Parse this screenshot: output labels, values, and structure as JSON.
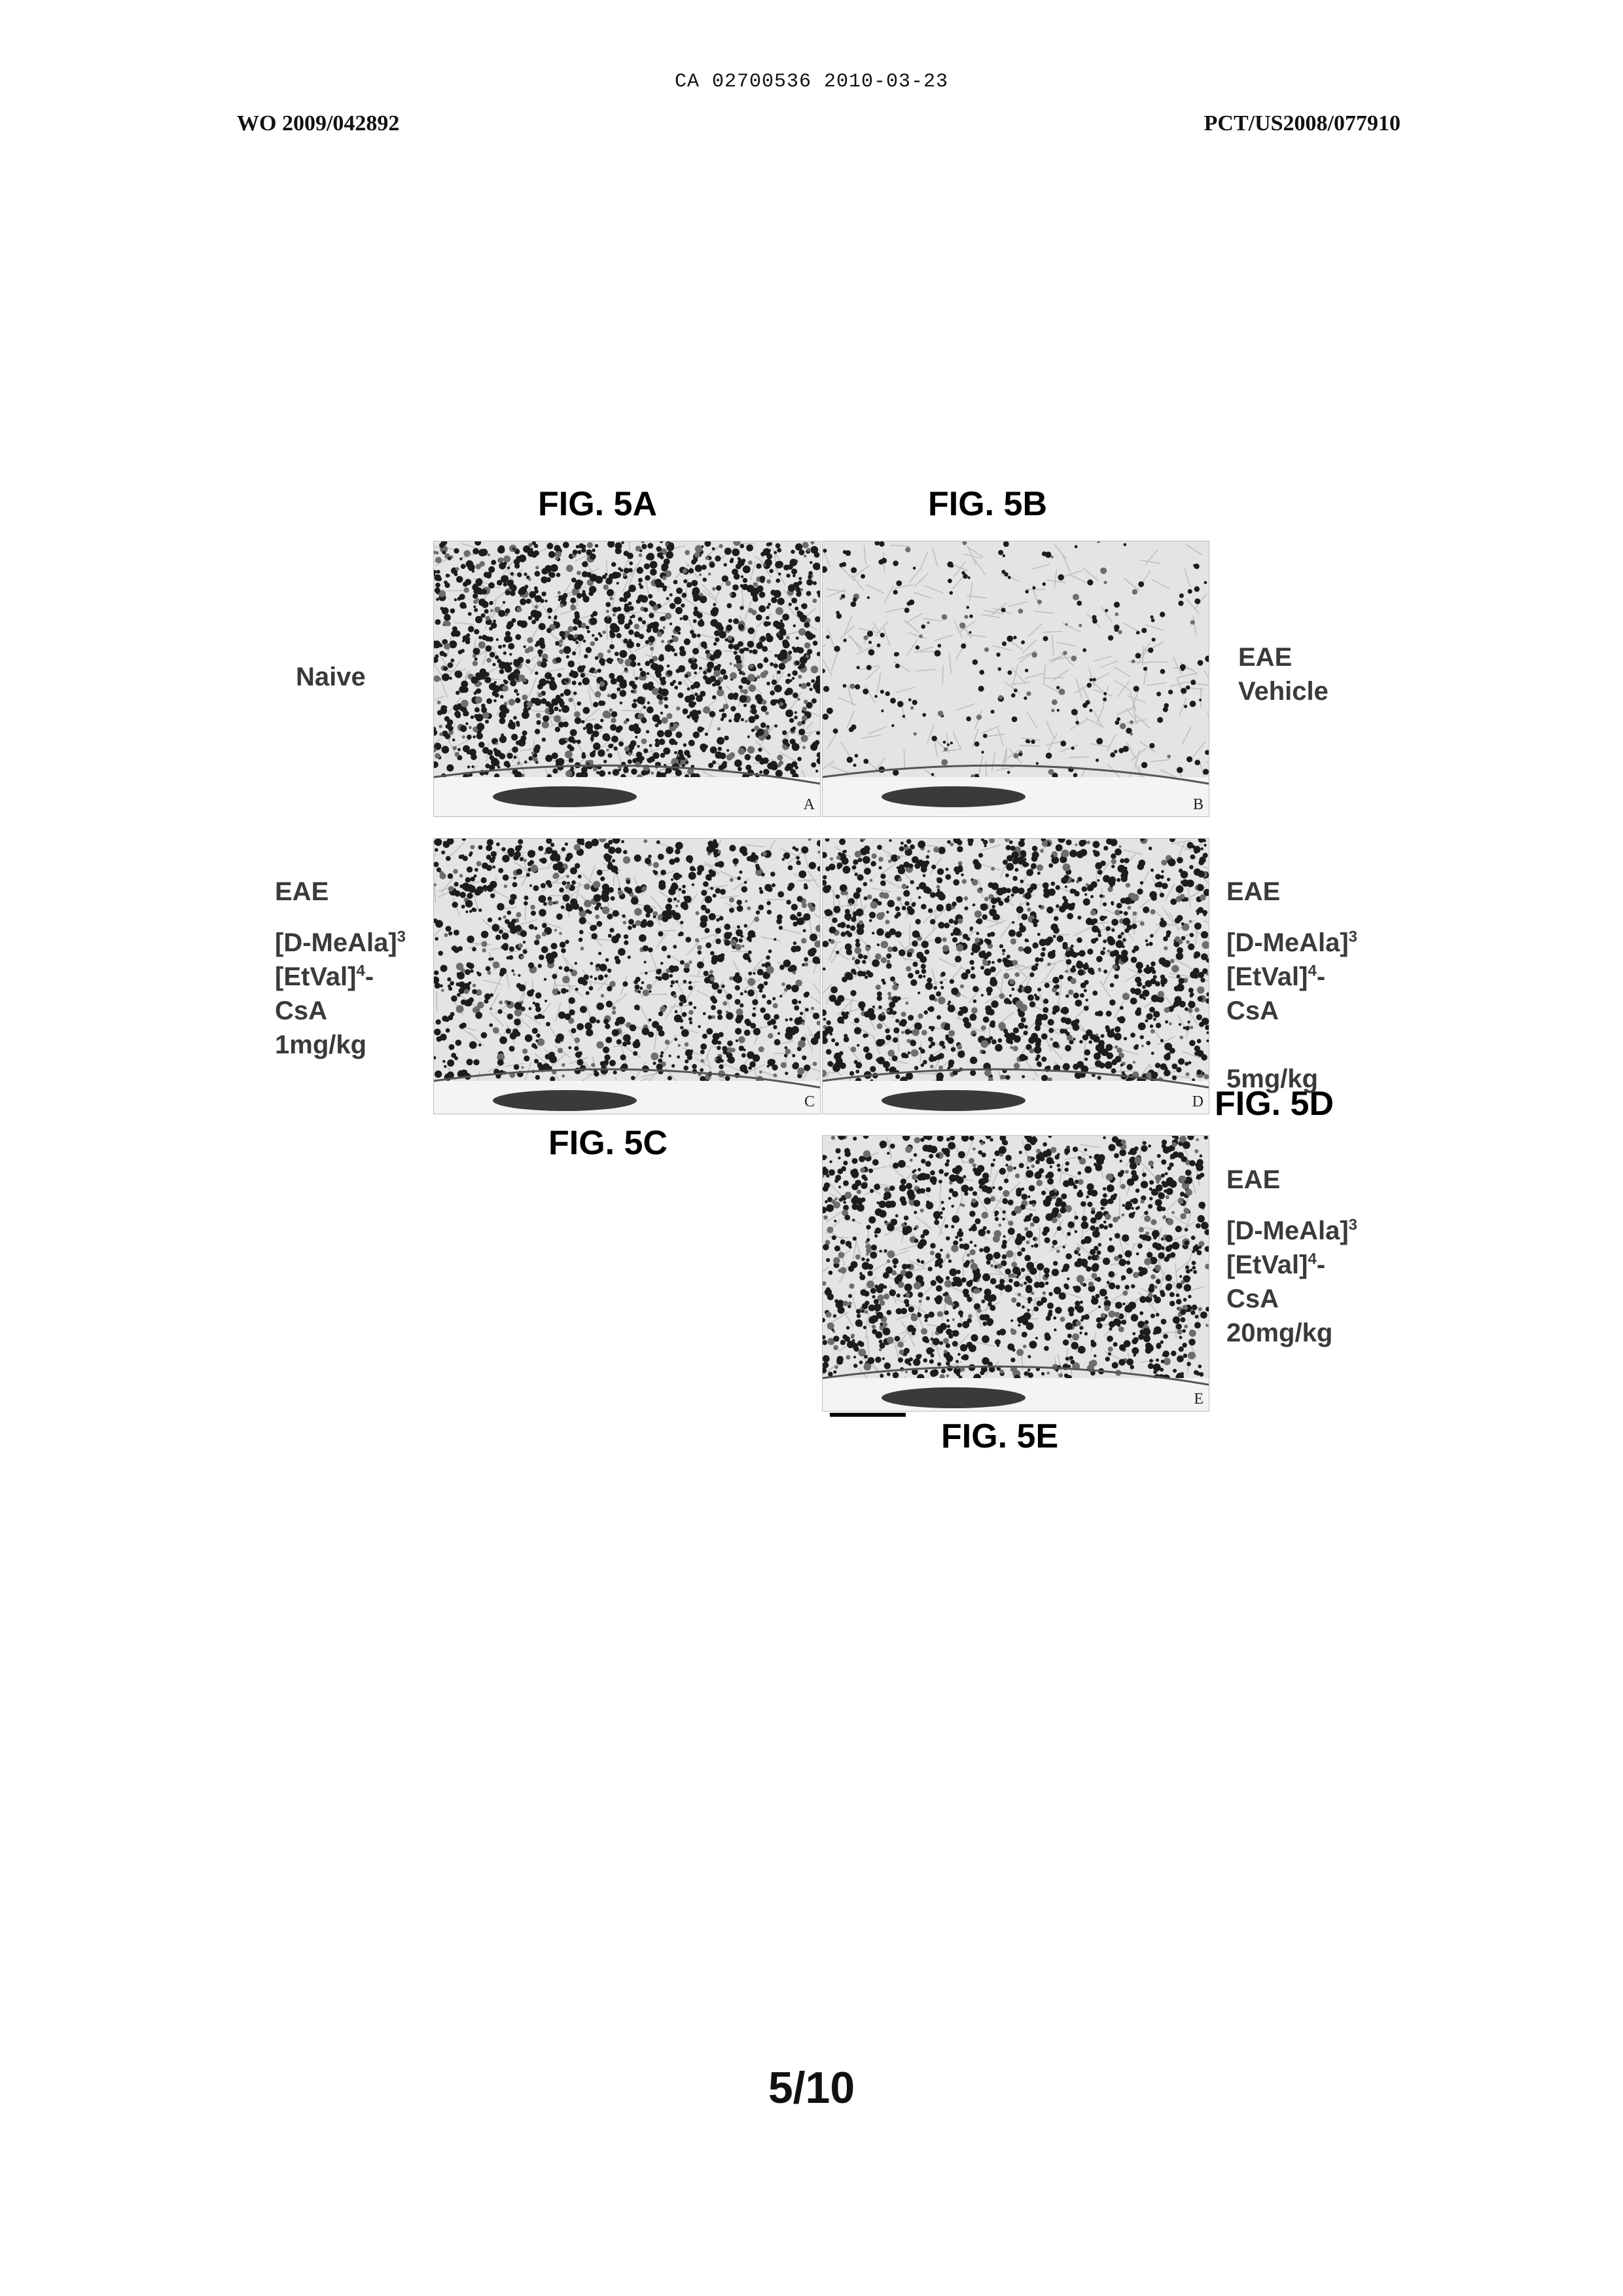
{
  "document": {
    "ca_header": "CA 02700536 2010-03-23",
    "pub_number": "WO 2009/042892",
    "app_number": "PCT/US2008/077910",
    "page_number": "5/10"
  },
  "figures": {
    "fig_5a": {
      "title": "FIG. 5A",
      "panel_letter": "A"
    },
    "fig_5b": {
      "title": "FIG. 5B",
      "panel_letter": "B"
    },
    "fig_5c": {
      "title": "FIG. 5C",
      "panel_letter": "C"
    },
    "fig_5d": {
      "title": "FIG. 5D",
      "panel_letter": "D"
    },
    "fig_5e": {
      "title": "FIG. 5E",
      "panel_letter": "E"
    }
  },
  "labels": {
    "naive": "Naive",
    "eae_vehicle": {
      "line1": "EAE",
      "line2": "Vehicle"
    },
    "eae_1mg": {
      "eae": "EAE",
      "compound_a": "[D-MeAla]",
      "sup_a": "3",
      "compound_b": "[EtVal]",
      "sup_b": "4",
      "dash": "-",
      "csa": "CsA",
      "dose": "1mg/kg"
    },
    "eae_5mg": {
      "eae": "EAE",
      "compound_a": "[D-MeAla]",
      "sup_a": "3",
      "compound_b": "[EtVal]",
      "sup_b": "4",
      "dash": "-",
      "csa": "CsA",
      "dose": "5mg/kg"
    },
    "eae_20mg": {
      "eae": "EAE",
      "compound_a": "[D-MeAla]",
      "sup_a": "3",
      "compound_b": "[EtVal]",
      "sup_b": "4",
      "dash": "-",
      "csa": "CsA",
      "dose": "20mg/kg"
    }
  }
}
